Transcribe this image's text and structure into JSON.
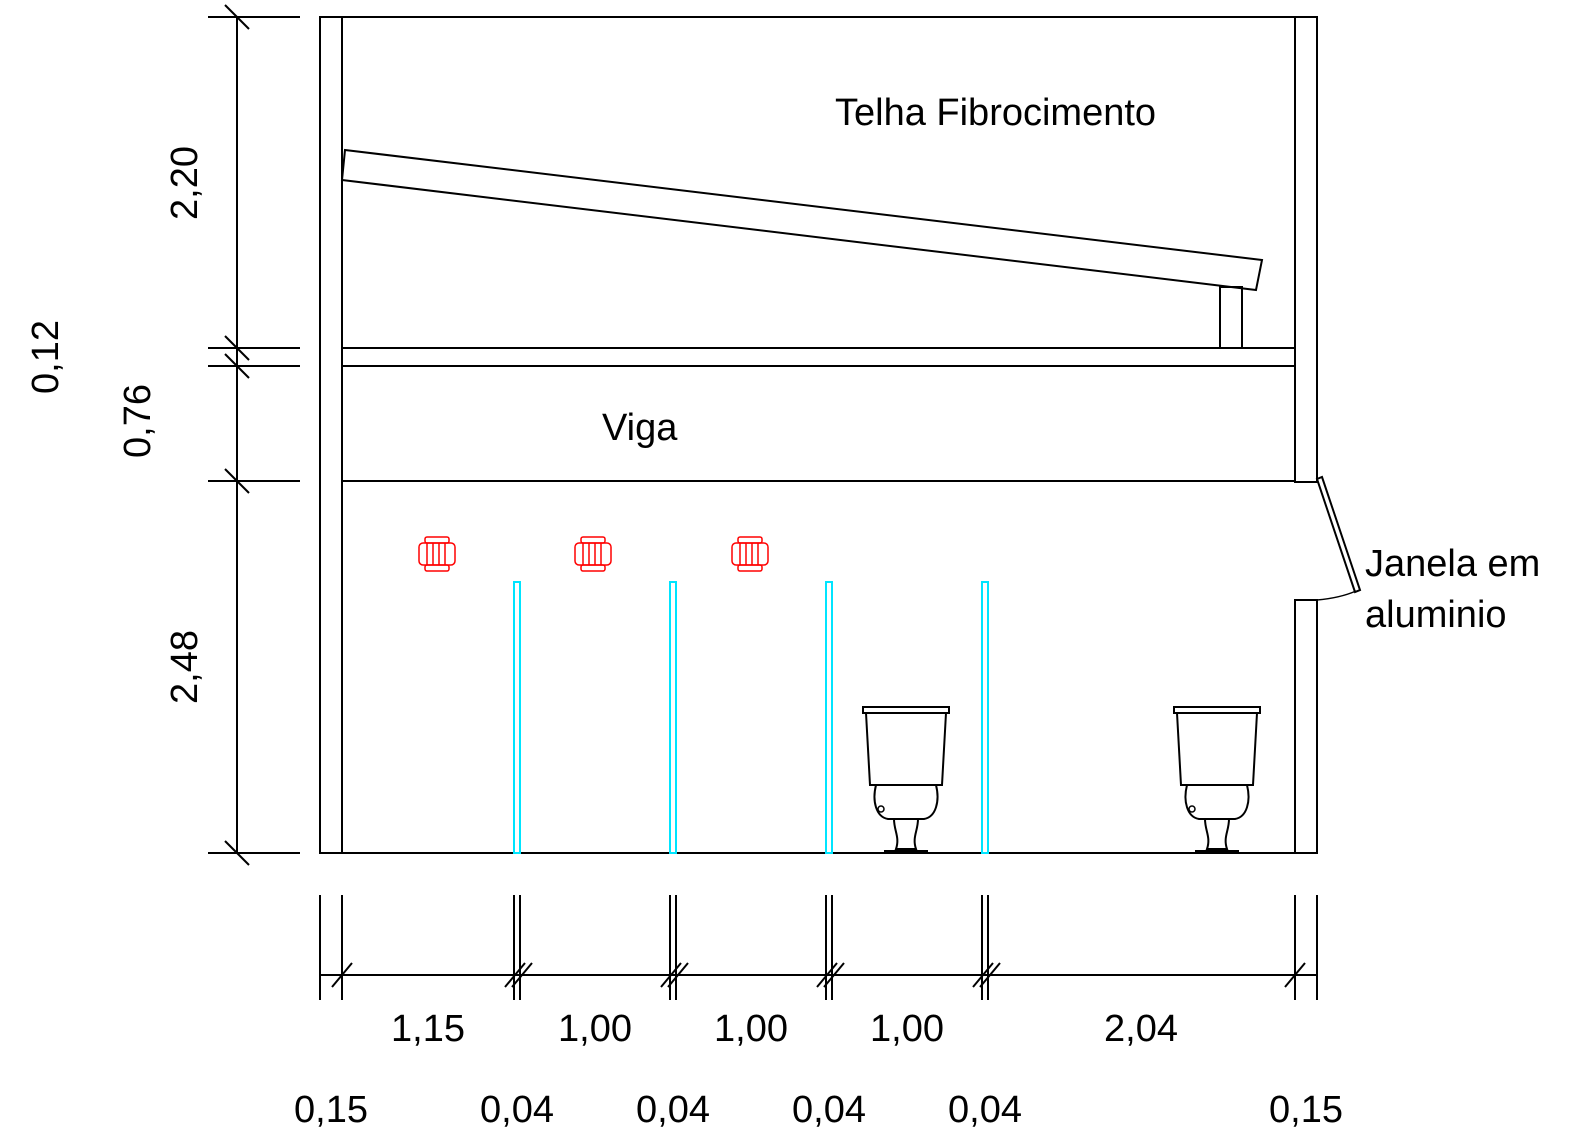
{
  "labels": {
    "roof": "Telha Fibrocimento",
    "beam": "Viga",
    "window_line1": "Janela em",
    "window_line2": "aluminio"
  },
  "vertical_dimensions": {
    "top": "2,20",
    "slab": "0,12",
    "beam": "0,76",
    "bottom": "2,48"
  },
  "horizontal_dimensions": {
    "main": [
      "1,15",
      "1,00",
      "1,00",
      "1,00",
      "2,04"
    ],
    "walls": [
      "0,15",
      "0,04",
      "0,04",
      "0,04",
      "0,04",
      "0,15"
    ]
  },
  "colors": {
    "lines": "#000000",
    "partitions": "#00e5ff",
    "fixtures": "#ff0000"
  },
  "icons": [
    "toilet-icon",
    "showerhead-icon"
  ]
}
